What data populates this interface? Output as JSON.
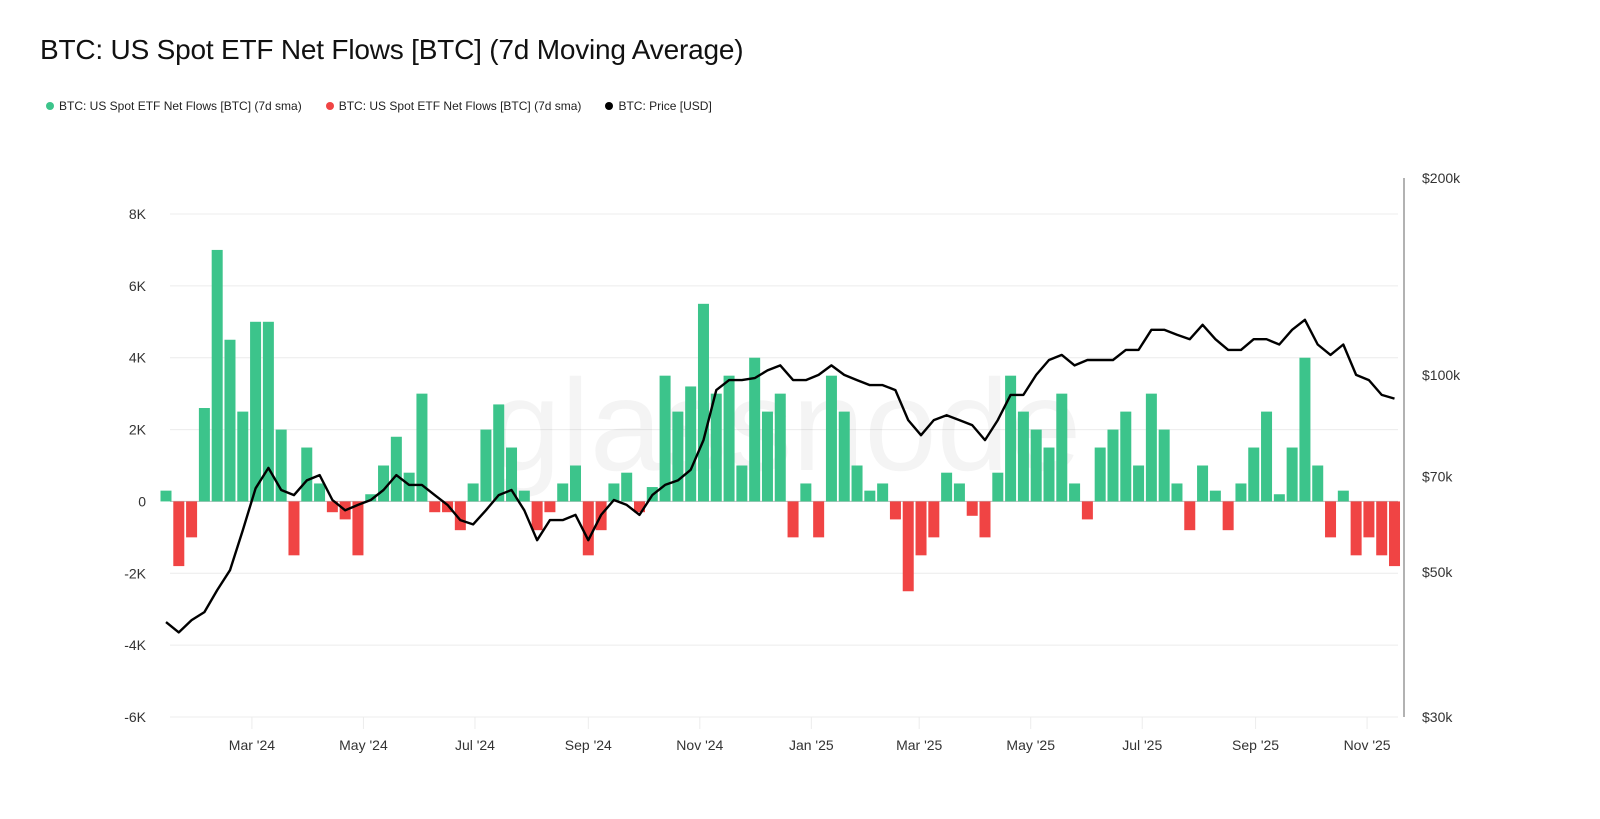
{
  "title": "BTC: US Spot ETF Net Flows [BTC] (7d Moving Average)",
  "watermark": "glassnode",
  "legend": [
    {
      "label": "BTC: US Spot ETF Net Flows [BTC] (7d sma)",
      "color": "#3cc48b"
    },
    {
      "label": "BTC: US Spot ETF Net Flows [BTC] (7d sma)",
      "color": "#f04444"
    },
    {
      "label": "BTC: Price [USD]",
      "color": "#000000"
    }
  ],
  "chart_data": {
    "type": "bar",
    "title": "BTC: US Spot ETF Net Flows [BTC] (7d Moving Average)",
    "x_ticks": [
      {
        "label": "Mar '24",
        "date": "2024-03-01"
      },
      {
        "label": "May '24",
        "date": "2024-05-01"
      },
      {
        "label": "Jul '24",
        "date": "2024-07-01"
      },
      {
        "label": "Sep '24",
        "date": "2024-09-01"
      },
      {
        "label": "Nov '24",
        "date": "2024-11-01"
      },
      {
        "label": "Jan '25",
        "date": "2025-01-01"
      },
      {
        "label": "Mar '25",
        "date": "2025-03-01"
      },
      {
        "label": "May '25",
        "date": "2025-05-01"
      },
      {
        "label": "Jul '25",
        "date": "2025-07-01"
      },
      {
        "label": "Sep '25",
        "date": "2025-09-01"
      },
      {
        "label": "Nov '25",
        "date": "2025-11-01"
      }
    ],
    "y_left": {
      "ticks": [
        {
          "label": "8K",
          "value": 8000
        },
        {
          "label": "6K",
          "value": 6000
        },
        {
          "label": "4K",
          "value": 4000
        },
        {
          "label": "2K",
          "value": 2000
        },
        {
          "label": "0",
          "value": 0
        },
        {
          "label": "-2K",
          "value": -2000
        },
        {
          "label": "-4K",
          "value": -4000
        },
        {
          "label": "-6K",
          "value": -6000
        }
      ],
      "range": [
        -6000,
        8000
      ],
      "grid": true
    },
    "y_right": {
      "scale": "log",
      "ticks": [
        {
          "label": "$200k",
          "value": 200000
        },
        {
          "label": "$100k",
          "value": 100000
        },
        {
          "label": "$70k",
          "value": 70000
        },
        {
          "label": "$50k",
          "value": 50000
        },
        {
          "label": "$30k",
          "value": 30000
        }
      ],
      "range": [
        30000,
        200000
      ]
    },
    "x_range": [
      "2024-01-14",
      "2025-11-19"
    ],
    "dates": [
      "2024-01-14",
      "2024-01-21",
      "2024-01-28",
      "2024-02-04",
      "2024-02-11",
      "2024-02-18",
      "2024-02-25",
      "2024-03-03",
      "2024-03-10",
      "2024-03-17",
      "2024-03-24",
      "2024-03-31",
      "2024-04-07",
      "2024-04-14",
      "2024-04-21",
      "2024-04-28",
      "2024-05-05",
      "2024-05-12",
      "2024-05-19",
      "2024-05-26",
      "2024-06-02",
      "2024-06-09",
      "2024-06-16",
      "2024-06-23",
      "2024-06-30",
      "2024-07-07",
      "2024-07-14",
      "2024-07-21",
      "2024-07-28",
      "2024-08-04",
      "2024-08-11",
      "2024-08-18",
      "2024-08-25",
      "2024-09-01",
      "2024-09-08",
      "2024-09-15",
      "2024-09-22",
      "2024-09-29",
      "2024-10-06",
      "2024-10-13",
      "2024-10-20",
      "2024-10-27",
      "2024-11-03",
      "2024-11-10",
      "2024-11-17",
      "2024-11-24",
      "2024-12-01",
      "2024-12-08",
      "2024-12-15",
      "2024-12-22",
      "2024-12-29",
      "2025-01-05",
      "2025-01-12",
      "2025-01-19",
      "2025-01-26",
      "2025-02-02",
      "2025-02-09",
      "2025-02-16",
      "2025-02-23",
      "2025-03-02",
      "2025-03-09",
      "2025-03-16",
      "2025-03-23",
      "2025-03-30",
      "2025-04-06",
      "2025-04-13",
      "2025-04-20",
      "2025-04-27",
      "2025-05-04",
      "2025-05-11",
      "2025-05-18",
      "2025-05-25",
      "2025-06-01",
      "2025-06-08",
      "2025-06-15",
      "2025-06-22",
      "2025-06-29",
      "2025-07-06",
      "2025-07-13",
      "2025-07-20",
      "2025-07-27",
      "2025-08-03",
      "2025-08-10",
      "2025-08-17",
      "2025-08-24",
      "2025-08-31",
      "2025-09-07",
      "2025-09-14",
      "2025-09-21",
      "2025-09-28",
      "2025-10-05",
      "2025-10-12",
      "2025-10-19",
      "2025-10-26",
      "2025-11-02",
      "2025-11-09",
      "2025-11-16"
    ],
    "series": [
      {
        "name": "BTC: US Spot ETF Net Flows [BTC] (7d sma)",
        "axis": "left",
        "type": "bar",
        "positive_color": "#3cc48b",
        "negative_color": "#f04444",
        "values": [
          300,
          -1800,
          -1000,
          2600,
          7000,
          4500,
          2500,
          5000,
          5000,
          2000,
          -1500,
          1500,
          500,
          -300,
          -500,
          -1500,
          200,
          1000,
          1800,
          800,
          3000,
          -300,
          -300,
          -800,
          500,
          2000,
          2700,
          1500,
          300,
          -800,
          -300,
          500,
          1000,
          -1500,
          -800,
          500,
          800,
          -300,
          400,
          3500,
          2500,
          3200,
          5500,
          3000,
          3500,
          1000,
          4000,
          2500,
          3000,
          -1000,
          500,
          -1000,
          3500,
          2500,
          1000,
          300,
          500,
          -500,
          -2500,
          -1500,
          -1000,
          800,
          500,
          -400,
          -1000,
          800,
          3500,
          2500,
          2000,
          1500,
          3000,
          500,
          -500,
          1500,
          2000,
          2500,
          1000,
          3000,
          2000,
          500,
          -800,
          1000,
          300,
          -800,
          500,
          1500,
          2500,
          200,
          1500,
          4000,
          1000,
          -1000,
          300,
          -1500,
          -1000,
          -1500,
          -1800
        ]
      },
      {
        "name": "BTC: Price [USD]",
        "axis": "right",
        "type": "line",
        "color": "#000000",
        "values": [
          41900,
          40400,
          42200,
          43400,
          46900,
          50300,
          57900,
          67100,
          72100,
          66700,
          65500,
          69000,
          70300,
          64400,
          62100,
          63300,
          64400,
          66700,
          70300,
          67900,
          67900,
          65500,
          63300,
          60000,
          59100,
          62100,
          65500,
          66700,
          62100,
          55900,
          60000,
          60000,
          61100,
          55900,
          61100,
          64400,
          63300,
          61100,
          65500,
          67900,
          69000,
          71600,
          79500,
          94800,
          98200,
          98200,
          98900,
          101600,
          103400,
          98200,
          98200,
          100000,
          103400,
          100000,
          98200,
          96500,
          96500,
          94800,
          85300,
          80900,
          85300,
          86800,
          85300,
          83800,
          79500,
          85300,
          93200,
          93200,
          100000,
          105400,
          107300,
          103400,
          105400,
          105400,
          105400,
          109200,
          109200,
          117200,
          117200,
          115200,
          113400,
          119300,
          113400,
          109200,
          109200,
          113400,
          113400,
          111300,
          117200,
          121400,
          111300,
          107300,
          111300,
          100000,
          98200,
          93200,
          92000
        ]
      }
    ]
  }
}
